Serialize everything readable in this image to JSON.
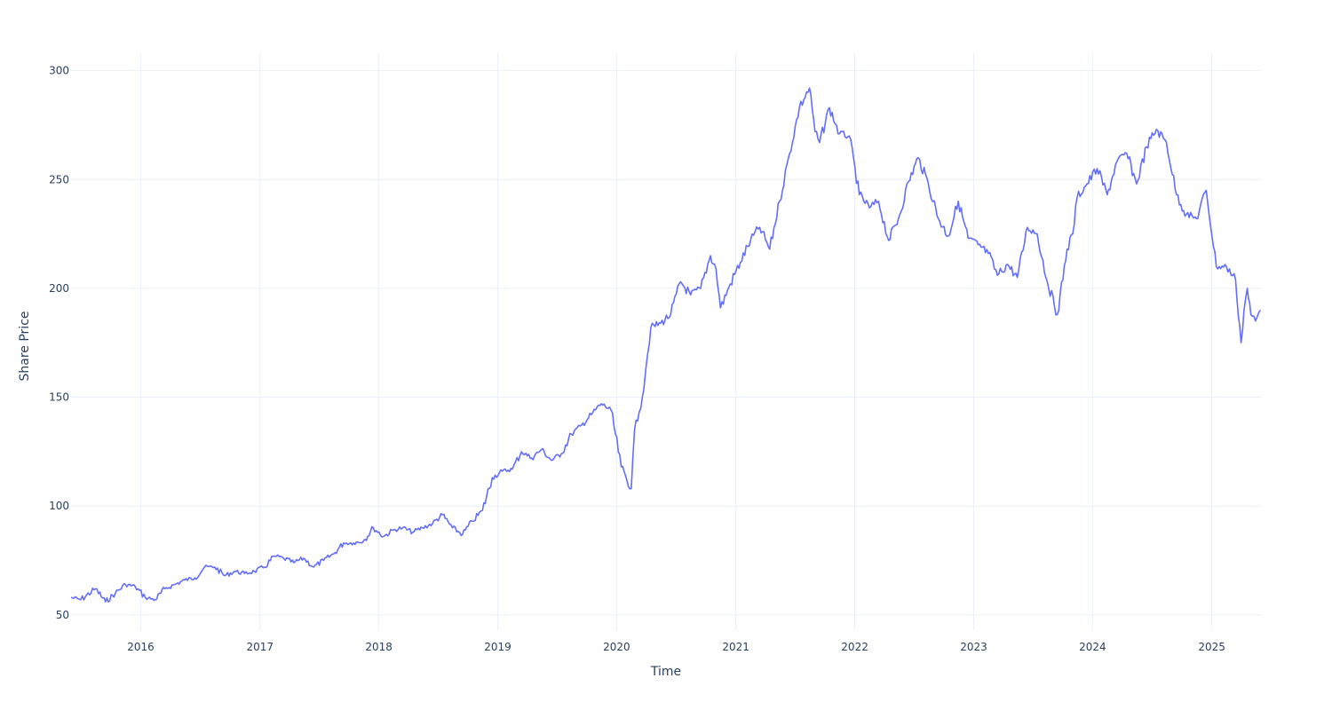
{
  "chart_data": {
    "type": "line",
    "title": "",
    "xlabel": "Time",
    "ylabel": "Share Price",
    "x_ticks": [
      "2016",
      "2017",
      "2018",
      "2019",
      "2020",
      "2021",
      "2022",
      "2023",
      "2024",
      "2025"
    ],
    "y_ticks": [
      50,
      100,
      150,
      200,
      250,
      300
    ],
    "xlim": [
      "2015-06-01",
      "2025-06-01"
    ],
    "ylim": [
      43,
      308
    ],
    "grid": true,
    "legend": "none",
    "colors": {
      "line": "#636efa",
      "grid": "#ebf0f8",
      "text": "#2a3f5f"
    },
    "series": [
      {
        "x": [
          "2015-06-01",
          "2015-07-01",
          "2015-08-15",
          "2015-09-15",
          "2015-10-15",
          "2015-11-15",
          "2015-12-15",
          "2016-01-15",
          "2016-02-15",
          "2016-03-15",
          "2016-04-15",
          "2016-05-15",
          "2016-06-15",
          "2016-07-15",
          "2016-08-15",
          "2016-09-15",
          "2016-10-15",
          "2016-11-15",
          "2016-12-15",
          "2017-01-15",
          "2017-02-15",
          "2017-03-15",
          "2017-04-15",
          "2017-05-15",
          "2017-06-15",
          "2017-07-15",
          "2017-08-15",
          "2017-09-15",
          "2017-10-15",
          "2017-11-15",
          "2017-12-15",
          "2018-01-15",
          "2018-02-15",
          "2018-03-15",
          "2018-04-15",
          "2018-05-15",
          "2018-06-15",
          "2018-07-15",
          "2018-08-15",
          "2018-09-15",
          "2018-10-15",
          "2018-11-15",
          "2018-12-15",
          "2019-01-15",
          "2019-02-15",
          "2019-03-15",
          "2019-04-15",
          "2019-05-15",
          "2019-06-15",
          "2019-07-15",
          "2019-08-15",
          "2019-09-15",
          "2019-10-15",
          "2019-11-15",
          "2019-12-15",
          "2020-01-15",
          "2020-02-15",
          "2020-02-25",
          "2020-03-10",
          "2020-03-20",
          "2020-04-01",
          "2020-04-15",
          "2020-05-15",
          "2020-06-15",
          "2020-07-15",
          "2020-08-15",
          "2020-09-15",
          "2020-10-15",
          "2020-11-01",
          "2020-11-15",
          "2020-12-15",
          "2021-01-15",
          "2021-02-15",
          "2021-03-15",
          "2021-04-15",
          "2021-05-15",
          "2021-06-15",
          "2021-07-15",
          "2021-08-15",
          "2021-09-01",
          "2021-09-15",
          "2021-10-15",
          "2021-11-15",
          "2021-12-15",
          "2022-01-15",
          "2022-02-15",
          "2022-03-15",
          "2022-04-15",
          "2022-05-15",
          "2022-06-15",
          "2022-07-15",
          "2022-08-15",
          "2022-09-15",
          "2022-10-15",
          "2022-11-15",
          "2022-12-15",
          "2023-01-15",
          "2023-02-15",
          "2023-03-15",
          "2023-04-15",
          "2023-05-15",
          "2023-06-15",
          "2023-07-15",
          "2023-08-15",
          "2023-09-15",
          "2023-10-15",
          "2023-11-01",
          "2023-11-15",
          "2023-12-15",
          "2024-01-15",
          "2024-02-15",
          "2024-03-15",
          "2024-04-15",
          "2024-05-15",
          "2024-06-15",
          "2024-07-15",
          "2024-08-15",
          "2024-09-15",
          "2024-10-15",
          "2024-11-15",
          "2024-12-15",
          "2025-01-15",
          "2025-02-15",
          "2025-03-15",
          "2025-04-01",
          "2025-04-10",
          "2025-04-20",
          "2025-05-01",
          "2025-05-15",
          "2025-05-30"
        ],
        "y": [
          58,
          57,
          62,
          56,
          60,
          64,
          63,
          58,
          57,
          62,
          64,
          66,
          67,
          72,
          72,
          68,
          70,
          69,
          70,
          72,
          77,
          76,
          74,
          76,
          72,
          75,
          78,
          83,
          83,
          84,
          90,
          86,
          89,
          90,
          88,
          90,
          92,
          96,
          90,
          87,
          93,
          98,
          113,
          116,
          117,
          125,
          122,
          126,
          121,
          124,
          133,
          137,
          142,
          147,
          144,
          118,
          108,
          135,
          143,
          150,
          165,
          182,
          184,
          188,
          203,
          197,
          200,
          215,
          209,
          191,
          202,
          212,
          222,
          228,
          218,
          240,
          262,
          283,
          292,
          272,
          267,
          283,
          271,
          270,
          243,
          237,
          240,
          222,
          232,
          249,
          260,
          248,
          232,
          224,
          240,
          223,
          220,
          216,
          206,
          211,
          205,
          228,
          225,
          203,
          188,
          218,
          225,
          242,
          248,
          255,
          243,
          258,
          262,
          248,
          265,
          273,
          267,
          243,
          234,
          232,
          245,
          210,
          210,
          204,
          175,
          190,
          200,
          188,
          185,
          190
        ]
      }
    ]
  }
}
